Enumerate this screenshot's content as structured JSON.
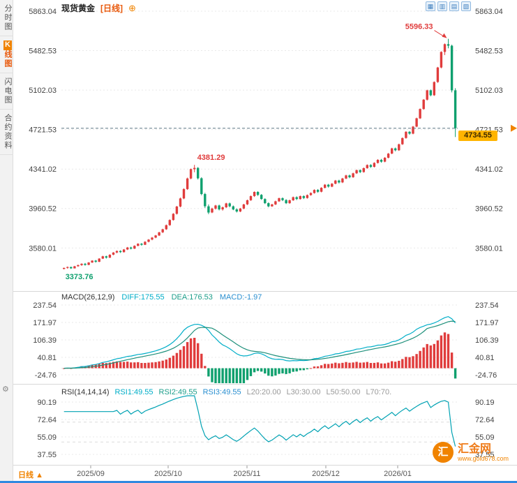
{
  "header": {
    "title": "现货黄金",
    "interval": "[日线]",
    "zoom_icon": "⊕"
  },
  "sidebar": {
    "items": [
      {
        "label": "分时图"
      },
      {
        "label": "K线图",
        "selected": true
      },
      {
        "label": "闪电图"
      },
      {
        "label": "合约资料"
      }
    ]
  },
  "toolbar": {
    "icons": [
      {
        "name": "grid-chart-icon",
        "glyph": "▦"
      },
      {
        "name": "candlestick-chart-icon",
        "glyph": "▥"
      },
      {
        "name": "line-chart-icon",
        "glyph": "▤"
      },
      {
        "name": "area-chart-icon",
        "glyph": "▧"
      }
    ]
  },
  "price_tag": {
    "value": "4734.55"
  },
  "bottom_bar": {
    "interval": "日线",
    "arrow": "▲"
  },
  "watermark": {
    "logo_char": "汇",
    "site_name": "汇金网",
    "site_url": "www.gold678.com"
  },
  "chart_data": {
    "type": "candlestick",
    "title": "现货黄金",
    "period": "日线",
    "y_ticks": [
      5863.04,
      5482.53,
      5102.03,
      4721.53,
      4341.02,
      3960.52,
      3580.01
    ],
    "x_ticks": [
      "2025/09",
      "2025/10",
      "2025/11",
      "2025/12",
      "2026/01"
    ],
    "annotations": {
      "high": "5596.33",
      "swing_high": "4381.29",
      "low": "3373.76",
      "last_price": "4734.55"
    },
    "macd": {
      "label": "MACD(26,12,9)",
      "diff": "DIFF:175.55",
      "dea": "DEA:176.53",
      "macd": "MACD:-1.97",
      "params": [
        26,
        12,
        9
      ],
      "y_ticks": [
        237.54,
        171.97,
        106.39,
        40.81,
        -24.76
      ]
    },
    "rsi": {
      "label": "RSI(14,14,14)",
      "rsi1": "RSI1:49.55",
      "rsi2": "RSI2:49.55",
      "rsi3": "RSI3:49.55",
      "l20": "L20:20.00",
      "l30": "L30:30.00",
      "l50": "L50:50.00",
      "l70": "L70:70.",
      "period": 14,
      "y_ticks": [
        90.19,
        72.64,
        55.09,
        37.55
      ]
    },
    "colors": {
      "up": "#e03c3c",
      "down": "#0fa06e",
      "diff_line": "#00aec8",
      "dea_line": "#1d8f7a",
      "rsi_line": "#00a2b3",
      "grid": "#e9e9e9",
      "axis_text": "#444444",
      "dashed_line": "#5a7684",
      "accent": "#f08300",
      "tag_bg": "#ffb400"
    },
    "candles": [
      [
        3378,
        3390,
        3373.76,
        3388
      ],
      [
        3388,
        3402,
        3380,
        3396
      ],
      [
        3396,
        3400,
        3378,
        3384
      ],
      [
        3384,
        3408,
        3382,
        3404
      ],
      [
        3404,
        3420,
        3398,
        3415
      ],
      [
        3415,
        3432,
        3408,
        3428
      ],
      [
        3428,
        3436,
        3410,
        3417
      ],
      [
        3417,
        3444,
        3414,
        3440
      ],
      [
        3440,
        3462,
        3436,
        3458
      ],
      [
        3458,
        3464,
        3438,
        3447
      ],
      [
        3447,
        3482,
        3444,
        3478
      ],
      [
        3478,
        3505,
        3474,
        3500
      ],
      [
        3500,
        3506,
        3478,
        3487
      ],
      [
        3487,
        3520,
        3484,
        3515
      ],
      [
        3515,
        3540,
        3510,
        3536
      ],
      [
        3536,
        3556,
        3530,
        3551
      ],
      [
        3551,
        3558,
        3532,
        3540
      ],
      [
        3540,
        3570,
        3536,
        3566
      ],
      [
        3566,
        3590,
        3560,
        3585
      ],
      [
        3585,
        3592,
        3566,
        3574
      ],
      [
        3574,
        3606,
        3570,
        3601
      ],
      [
        3601,
        3626,
        3596,
        3621
      ],
      [
        3621,
        3628,
        3602,
        3611
      ],
      [
        3611,
        3645,
        3608,
        3640
      ],
      [
        3640,
        3666,
        3634,
        3661
      ],
      [
        3661,
        3686,
        3654,
        3680
      ],
      [
        3680,
        3706,
        3674,
        3701
      ],
      [
        3701,
        3736,
        3696,
        3731
      ],
      [
        3731,
        3766,
        3724,
        3760
      ],
      [
        3760,
        3806,
        3754,
        3800
      ],
      [
        3800,
        3856,
        3794,
        3850
      ],
      [
        3850,
        3916,
        3844,
        3910
      ],
      [
        3910,
        3986,
        3902,
        3980
      ],
      [
        3980,
        4066,
        3972,
        4058
      ],
      [
        4058,
        4156,
        4050,
        4148
      ],
      [
        4148,
        4258,
        4140,
        4250
      ],
      [
        4250,
        4346,
        4242,
        4340
      ],
      [
        4340,
        4381.29,
        4310,
        4352
      ],
      [
        4352,
        4360,
        4240,
        4252
      ],
      [
        4252,
        4262,
        4088,
        4100
      ],
      [
        4100,
        4112,
        3966,
        3982
      ],
      [
        3982,
        4000,
        3906,
        3922
      ],
      [
        3922,
        3968,
        3916,
        3960
      ],
      [
        3960,
        3996,
        3950,
        3990
      ],
      [
        3990,
        3998,
        3942,
        3952
      ],
      [
        3952,
        3980,
        3940,
        3972
      ],
      [
        3972,
        4016,
        3966,
        4010
      ],
      [
        4010,
        4018,
        3972,
        3982
      ],
      [
        3982,
        3990,
        3944,
        3952
      ],
      [
        3952,
        3962,
        3922,
        3932
      ],
      [
        3932,
        3966,
        3926,
        3960
      ],
      [
        3960,
        4006,
        3954,
        4000
      ],
      [
        4000,
        4046,
        3994,
        4040
      ],
      [
        4040,
        4086,
        4034,
        4080
      ],
      [
        4080,
        4126,
        4072,
        4120
      ],
      [
        4120,
        4128,
        4082,
        4092
      ],
      [
        4092,
        4100,
        4044,
        4052
      ],
      [
        4052,
        4060,
        4004,
        4012
      ],
      [
        4012,
        4020,
        3972,
        3982
      ],
      [
        3982,
        4006,
        3976,
        4000
      ],
      [
        4000,
        4036,
        3994,
        4030
      ],
      [
        4030,
        4066,
        4024,
        4060
      ],
      [
        4060,
        4068,
        4032,
        4042
      ],
      [
        4042,
        4050,
        4004,
        4012
      ],
      [
        4012,
        4046,
        4006,
        4040
      ],
      [
        4040,
        4076,
        4034,
        4070
      ],
      [
        4070,
        4078,
        4042,
        4052
      ],
      [
        4052,
        4086,
        4046,
        4080
      ],
      [
        4080,
        4088,
        4052,
        4062
      ],
      [
        4062,
        4096,
        4056,
        4090
      ],
      [
        4090,
        4116,
        4084,
        4110
      ],
      [
        4110,
        4146,
        4104,
        4140
      ],
      [
        4140,
        4148,
        4112,
        4122
      ],
      [
        4122,
        4166,
        4116,
        4160
      ],
      [
        4160,
        4196,
        4154,
        4190
      ],
      [
        4190,
        4198,
        4162,
        4172
      ],
      [
        4172,
        4206,
        4166,
        4200
      ],
      [
        4200,
        4236,
        4194,
        4230
      ],
      [
        4230,
        4238,
        4202,
        4212
      ],
      [
        4212,
        4256,
        4206,
        4250
      ],
      [
        4250,
        4286,
        4244,
        4280
      ],
      [
        4280,
        4288,
        4252,
        4262
      ],
      [
        4262,
        4306,
        4256,
        4300
      ],
      [
        4300,
        4336,
        4294,
        4330
      ],
      [
        4330,
        4338,
        4302,
        4312
      ],
      [
        4312,
        4356,
        4306,
        4350
      ],
      [
        4350,
        4386,
        4344,
        4380
      ],
      [
        4380,
        4388,
        4352,
        4362
      ],
      [
        4362,
        4406,
        4356,
        4400
      ],
      [
        4400,
        4436,
        4394,
        4430
      ],
      [
        4430,
        4438,
        4402,
        4412
      ],
      [
        4412,
        4456,
        4406,
        4450
      ],
      [
        4450,
        4496,
        4444,
        4490
      ],
      [
        4490,
        4546,
        4484,
        4540
      ],
      [
        4540,
        4548,
        4512,
        4522
      ],
      [
        4522,
        4586,
        4516,
        4580
      ],
      [
        4580,
        4646,
        4574,
        4640
      ],
      [
        4640,
        4706,
        4634,
        4700
      ],
      [
        4700,
        4708,
        4672,
        4682
      ],
      [
        4682,
        4756,
        4676,
        4750
      ],
      [
        4750,
        4836,
        4744,
        4830
      ],
      [
        4830,
        4926,
        4824,
        4920
      ],
      [
        4920,
        5016,
        4912,
        5010
      ],
      [
        5010,
        5106,
        5002,
        5100
      ],
      [
        5100,
        5108,
        5042,
        5052
      ],
      [
        5052,
        5186,
        5046,
        5180
      ],
      [
        5180,
        5326,
        5172,
        5320
      ],
      [
        5320,
        5476,
        5312,
        5470
      ],
      [
        5470,
        5552,
        5440,
        5545
      ],
      [
        5545,
        5596.33,
        5505,
        5530
      ],
      [
        5530,
        5540,
        5080,
        5100
      ],
      [
        5100,
        5120,
        4650,
        4734.55
      ]
    ]
  }
}
